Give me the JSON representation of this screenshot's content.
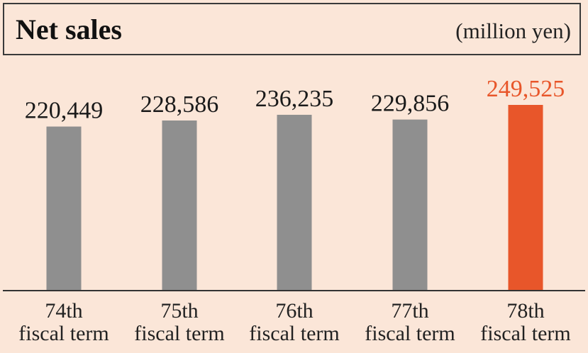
{
  "chart_data": {
    "type": "bar",
    "title": "Net sales",
    "unit_label": "(million yen)",
    "categories": [
      [
        "74th",
        "fiscal term"
      ],
      [
        "75th",
        "fiscal term"
      ],
      [
        "76th",
        "fiscal term"
      ],
      [
        "77th",
        "fiscal term"
      ],
      [
        "78th",
        "fiscal term"
      ]
    ],
    "values": [
      220449,
      228586,
      236235,
      229856,
      249525
    ],
    "value_labels": [
      "220,449",
      "228,586",
      "236,235",
      "229,856",
      "249,525"
    ],
    "highlight_index": 4,
    "colors": {
      "bar": "#8f8f8f",
      "highlight": "#e8562a",
      "text": "#1a1a1a",
      "highlight_text": "#e8562a"
    },
    "axis_range": [
      0,
      249525
    ],
    "grid": false,
    "legend": "none"
  }
}
